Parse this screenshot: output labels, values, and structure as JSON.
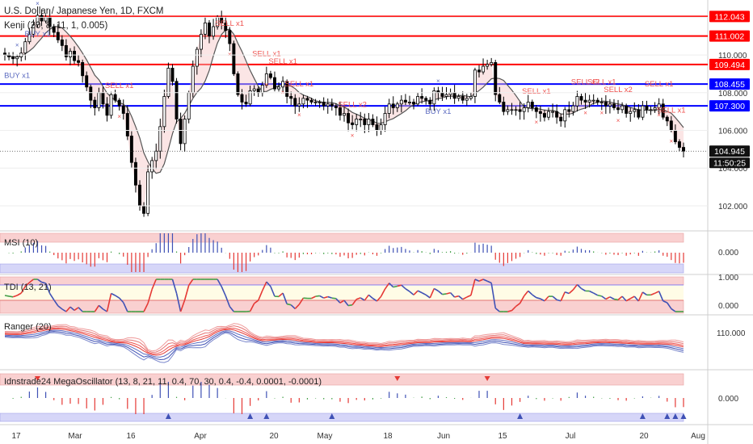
{
  "header": {
    "symbol_title": "U.S. Dollar / Japanese Yen, 1D, FXCM",
    "indicator_title": "Kenji (20, 8, 11, 1, 0.005)"
  },
  "colors": {
    "up": "#ffffff",
    "down": "#000000",
    "red_level": "#ff0000",
    "blue_level": "#0000ff",
    "sell_text": "#ef5350",
    "buy_text": "#5c6bc0",
    "ma_line": "#555555",
    "pane_red_band": "#f8c8c8",
    "pane_blue_band": "#c8c8f8",
    "pane_yellow_band": "#fffde0",
    "grid": "#eeeeee"
  },
  "main": {
    "price_scale": [
      "112.000",
      "110.000",
      "108.000",
      "106.000",
      "104.000",
      "102.000"
    ],
    "levels": [
      {
        "price": 112.043,
        "label": "112.043",
        "color": "red"
      },
      {
        "price": 111.002,
        "label": "111.002",
        "color": "red"
      },
      {
        "price": 109.494,
        "label": "109.494",
        "color": "red"
      },
      {
        "price": 108.455,
        "label": "108.455",
        "color": "blue"
      },
      {
        "price": 107.3,
        "label": "107.300",
        "color": "blue"
      }
    ],
    "last_price": {
      "label": "104.945",
      "countdown": "11:50:25"
    },
    "signals": [
      {
        "text": "BUY x1",
        "type": "buy",
        "index": 3
      },
      {
        "text": "BUY x1",
        "type": "buy",
        "index": 8
      },
      {
        "text": "SELL x1",
        "type": "sell",
        "index": 28
      },
      {
        "text": "SELL x1",
        "type": "sell",
        "index": 55
      },
      {
        "text": "SELL x1",
        "type": "sell",
        "index": 64
      },
      {
        "text": "SELL x1",
        "type": "sell",
        "index": 68
      },
      {
        "text": "SELL x1",
        "type": "sell",
        "index": 72
      },
      {
        "text": "SELL x2",
        "type": "sell",
        "index": 85
      },
      {
        "text": "BUY x1",
        "type": "buy",
        "index": 106
      },
      {
        "text": "SELL x1",
        "type": "sell",
        "index": 130
      },
      {
        "text": "SELL x2",
        "type": "sell",
        "index": 142
      },
      {
        "text": "SELL x1",
        "type": "sell",
        "index": 146
      },
      {
        "text": "SELL x2",
        "type": "sell",
        "index": 150
      },
      {
        "text": "SELL x1",
        "type": "sell",
        "index": 160
      },
      {
        "text": "SELL x1",
        "type": "sell",
        "index": 163
      }
    ]
  },
  "panes": {
    "msi": {
      "title": "MSI (10)",
      "scale": [
        "0.000"
      ]
    },
    "tdi": {
      "title": "TDI (13, 21)",
      "scale": [
        "1.000",
        "0.000"
      ]
    },
    "ranger": {
      "title": "Ranger (20)",
      "scale": [
        "110.000"
      ]
    },
    "mega": {
      "title": "Idnstrade24 MegaOscillator (13, 8, 21, 11, 0.4, 70, 30, 0.4, -0.4, 0.0001, -0.0001)",
      "scale": [
        "0.000"
      ]
    }
  },
  "time_axis": [
    "17",
    "Mar",
    "16",
    "Apr",
    "20",
    "May",
    "18",
    "Jun",
    "15",
    "Jul",
    "20",
    "Aug"
  ],
  "chart_data": {
    "type": "candlestick",
    "title": "U.S. Dollar / Japanese Yen, 1D, FXCM",
    "y_range": [
      100.8,
      112.4
    ],
    "closes": [
      110.0,
      109.9,
      109.8,
      109.9,
      110.1,
      110.7,
      111.1,
      111.6,
      112.1,
      111.8,
      112.0,
      111.5,
      111.2,
      110.8,
      110.5,
      109.9,
      110.2,
      109.7,
      109.6,
      108.9,
      108.3,
      107.6,
      107.2,
      108.0,
      107.4,
      106.8,
      107.9,
      107.6,
      107.3,
      106.9,
      105.7,
      104.3,
      103.1,
      102.0,
      101.6,
      103.8,
      104.4,
      104.9,
      106.2,
      107.8,
      109.3,
      108.6,
      106.6,
      105.3,
      106.6,
      108.0,
      109.4,
      110.3,
      111.1,
      111.7,
      111.0,
      111.5,
      112.0,
      111.7,
      111.3,
      110.6,
      109.0,
      107.9,
      107.5,
      107.4,
      108.1,
      108.2,
      108.0,
      108.4,
      109.0,
      108.8,
      108.2,
      108.3,
      108.6,
      107.8,
      107.7,
      107.3,
      107.4,
      107.7,
      107.6,
      107.5,
      107.5,
      107.5,
      107.3,
      107.4,
      107.3,
      107.2,
      106.8,
      106.9,
      106.4,
      106.3,
      106.6,
      106.6,
      106.3,
      106.6,
      106.3,
      106.0,
      106.3,
      106.9,
      107.4,
      107.2,
      107.4,
      107.6,
      107.5,
      107.5,
      107.4,
      107.8,
      107.7,
      107.6,
      107.4,
      108.1,
      108.0,
      107.8,
      107.9,
      108.0,
      107.7,
      107.8,
      107.6,
      107.7,
      107.8,
      109.2,
      109.1,
      109.4,
      109.5,
      109.6,
      107.9,
      107.5,
      107.0,
      107.1,
      107.1,
      107.1,
      107.0,
      107.2,
      107.5,
      107.2,
      107.0,
      106.9,
      106.7,
      107.0,
      107.0,
      106.7,
      106.5,
      107.1,
      107.0,
      107.3,
      107.8,
      107.6,
      107.5,
      107.6,
      107.6,
      107.5,
      107.5,
      107.3,
      107.4,
      107.2,
      107.1,
      107.3,
      106.9,
      107.0,
      107.1,
      106.7,
      107.3,
      107.1,
      107.1,
      107.2,
      107.4,
      106.7,
      106.5,
      106.0,
      105.4,
      105.1,
      104.9
    ]
  }
}
